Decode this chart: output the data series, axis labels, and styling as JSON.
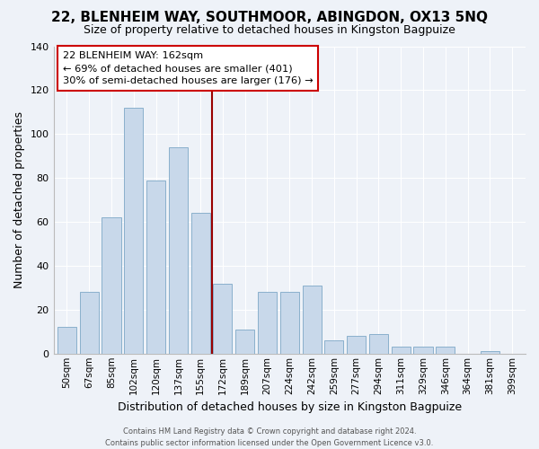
{
  "title": "22, BLENHEIM WAY, SOUTHMOOR, ABINGDON, OX13 5NQ",
  "subtitle": "Size of property relative to detached houses in Kingston Bagpuize",
  "xlabel": "Distribution of detached houses by size in Kingston Bagpuize",
  "ylabel": "Number of detached properties",
  "categories": [
    "50sqm",
    "67sqm",
    "85sqm",
    "102sqm",
    "120sqm",
    "137sqm",
    "155sqm",
    "172sqm",
    "189sqm",
    "207sqm",
    "224sqm",
    "242sqm",
    "259sqm",
    "277sqm",
    "294sqm",
    "311sqm",
    "329sqm",
    "346sqm",
    "364sqm",
    "381sqm",
    "399sqm"
  ],
  "bar_heights": [
    12,
    28,
    62,
    112,
    79,
    94,
    64,
    32,
    11,
    28,
    28,
    31,
    6,
    8,
    9,
    3,
    3,
    3,
    0,
    1,
    0
  ],
  "bar_color": "#c8d8ea",
  "bar_edgecolor": "#8ab0cc",
  "ylim": [
    0,
    140
  ],
  "yticks": [
    0,
    20,
    40,
    60,
    80,
    100,
    120,
    140
  ],
  "annotation_box_text": "22 BLENHEIM WAY: 162sqm\n← 69% of detached houses are smaller (401)\n30% of semi-detached houses are larger (176) →",
  "vline_color": "#990000",
  "background_color": "#eef2f8",
  "grid_color": "#ffffff",
  "footer_text": "Contains HM Land Registry data © Crown copyright and database right 2024.\nContains public sector information licensed under the Open Government Licence v3.0.",
  "title_fontsize": 11,
  "subtitle_fontsize": 9,
  "ylabel_text": "Number of detached properties"
}
